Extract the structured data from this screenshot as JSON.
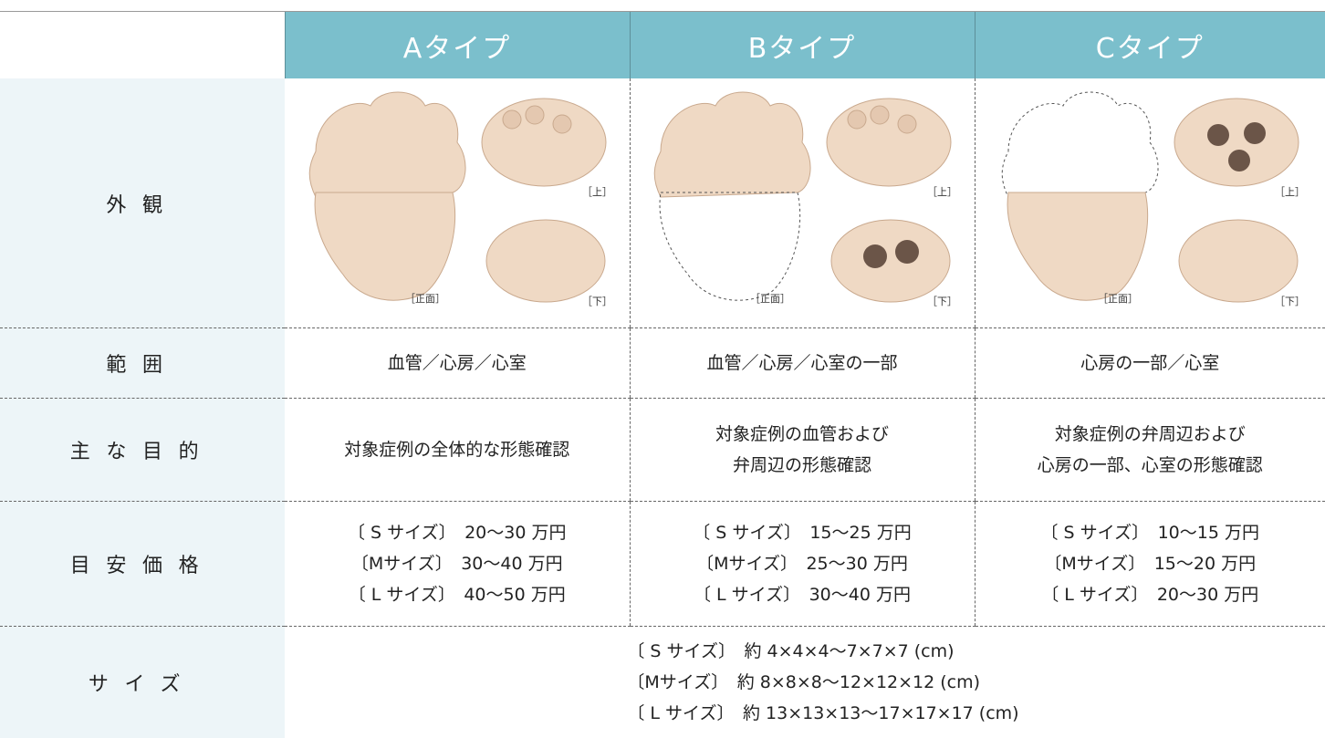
{
  "table": {
    "columns": [
      "Aタイプ",
      "Bタイプ",
      "Cタイプ"
    ],
    "rows": [
      {
        "label": "外観",
        "captions": [
          [
            "［正面］",
            "［上］",
            "［下］"
          ],
          [
            "［正面］",
            "［上］",
            "［下］"
          ],
          [
            "［正面］",
            "［上］",
            "［下］"
          ]
        ]
      },
      {
        "label": "範囲",
        "cells": [
          [
            "血管／心房／心室"
          ],
          [
            "血管／心房／心室の一部"
          ],
          [
            "心房の一部／心室"
          ]
        ]
      },
      {
        "label": "主な目的",
        "cells": [
          [
            "対象症例の全体的な形態確認"
          ],
          [
            "対象症例の血管および",
            "弁周辺の形態確認"
          ],
          [
            "対象症例の弁周辺および",
            "心房の一部、心室の形態確認"
          ]
        ]
      },
      {
        "label": "目安価格",
        "cells": [
          [
            "〔 S サイズ〕　20〜30 万円",
            "〔Mサイズ〕　30〜40 万円",
            "〔 L サイズ〕　40〜50 万円"
          ],
          [
            "〔 S サイズ〕　15〜25 万円",
            "〔Mサイズ〕　25〜30 万円",
            "〔 L サイズ〕　30〜40 万円"
          ],
          [
            "〔 S サイズ〕　10〜15 万円",
            "〔Mサイズ〕　15〜20 万円",
            "〔 L サイズ〕　20〜30 万円"
          ]
        ]
      },
      {
        "label": "サイズ",
        "lines": [
          "〔 S サイズ〕　約 4×4×4〜7×7×7 (cm)",
          "〔Mサイズ〕　約 8×8×8〜12×12×12 (cm)",
          "〔 L サイズ〕　約 13×13×13〜17×17×17 (cm)"
        ]
      }
    ]
  }
}
